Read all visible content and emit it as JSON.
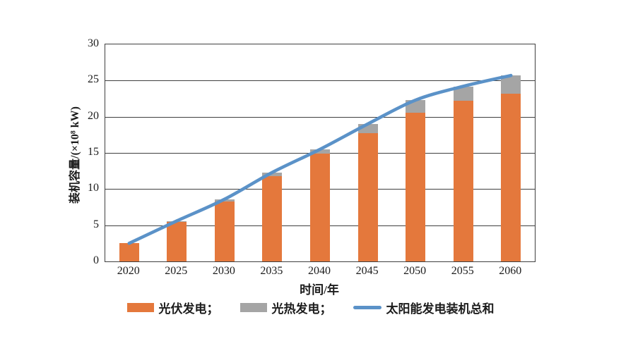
{
  "chart_data": {
    "type": "bar",
    "subtype": "stacked-bars-with-smooth-total-line",
    "title": "",
    "xlabel": "时间/年",
    "ylabel": "装机容量/(×10⁸ kW)",
    "categories": [
      "2020",
      "2025",
      "2030",
      "2035",
      "2040",
      "2045",
      "2050",
      "2055",
      "2060"
    ],
    "series": [
      {
        "name": "光伏发电",
        "type": "bar",
        "stack": "solar",
        "color": "#E4783C",
        "values": [
          2.5,
          5.5,
          8.3,
          11.8,
          14.9,
          17.7,
          20.6,
          22.2,
          23.2
        ]
      },
      {
        "name": "光热发电",
        "type": "bar",
        "stack": "solar",
        "color": "#A5A5A5",
        "values": [
          0,
          0.1,
          0.3,
          0.5,
          0.6,
          1.3,
          1.7,
          2.0,
          2.5
        ]
      },
      {
        "name": "太阳能发电装机总和",
        "type": "line",
        "color": "#5B92C8",
        "values": [
          2.5,
          5.6,
          8.6,
          12.3,
          15.5,
          19.0,
          22.3,
          24.2,
          25.7
        ]
      }
    ],
    "ylim": [
      0,
      30
    ],
    "ytick_interval": 5,
    "yticks": [
      0,
      5,
      10,
      15,
      20,
      25,
      30
    ],
    "grid": true,
    "legend_position": "bottom"
  },
  "legend": {
    "items": [
      {
        "label": "光伏发电；",
        "swatch": "bar",
        "color": "#E4783C"
      },
      {
        "label": "光热发电；",
        "swatch": "bar",
        "color": "#A5A5A5"
      },
      {
        "label": "太阳能发电装机总和",
        "swatch": "line",
        "color": "#5B92C8"
      }
    ]
  },
  "colors": {
    "background": "#FFFFFF",
    "axis": "#3F3F3F",
    "grid": "#3F3F3F",
    "text": "#1C1C1C"
  }
}
